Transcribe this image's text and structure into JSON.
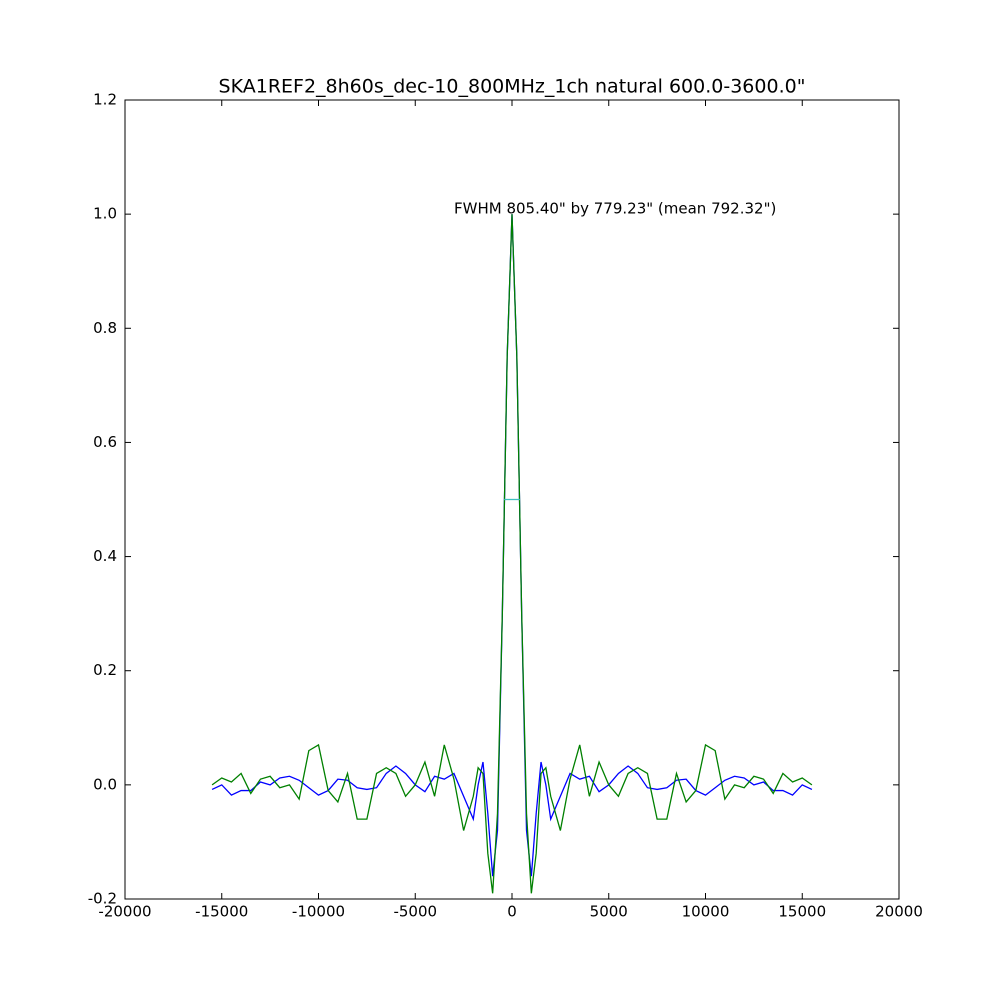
{
  "chart_data": {
    "type": "line",
    "title": "SKA1REF2_8h60s_dec-10_800MHz_1ch natural  600.0-3600.0\"",
    "annotation": "FWHM 805.40\" by 779.23\" (mean 792.32\")",
    "x": [
      -15500,
      -15000,
      -14500,
      -14000,
      -13500,
      -13000,
      -12500,
      -12000,
      -11500,
      -11000,
      -10500,
      -10000,
      -9500,
      -9000,
      -8500,
      -8000,
      -7500,
      -7000,
      -6500,
      -6000,
      -5500,
      -5000,
      -4500,
      -4000,
      -3500,
      -3000,
      -2500,
      -2000,
      -1750,
      -1500,
      -1250,
      -1000,
      -750,
      -500,
      -250,
      0,
      250,
      500,
      750,
      1000,
      1250,
      1500,
      1750,
      2000,
      2500,
      3000,
      3500,
      4000,
      4500,
      5000,
      5500,
      6000,
      6500,
      7000,
      7500,
      8000,
      8500,
      9000,
      9500,
      10000,
      10500,
      11000,
      11500,
      12000,
      12500,
      13000,
      13500,
      14000,
      14500,
      15000,
      15500
    ],
    "series": [
      {
        "color": "#0000ff",
        "values": [
          -0.008,
          0.0,
          -0.018,
          -0.01,
          -0.01,
          0.005,
          0.0,
          0.012,
          0.015,
          0.008,
          -0.005,
          -0.018,
          -0.01,
          0.01,
          0.008,
          -0.005,
          -0.008,
          -0.005,
          0.02,
          0.033,
          0.02,
          0.0,
          -0.012,
          0.015,
          0.01,
          0.02,
          -0.02,
          -0.06,
          0.0,
          0.04,
          -0.05,
          -0.16,
          -0.08,
          0.3,
          0.75,
          1.0,
          0.75,
          0.3,
          -0.08,
          -0.16,
          -0.05,
          0.04,
          0.0,
          -0.06,
          -0.02,
          0.02,
          0.01,
          0.015,
          -0.012,
          0.0,
          0.02,
          0.033,
          0.02,
          -0.005,
          -0.008,
          -0.005,
          0.008,
          0.01,
          -0.01,
          -0.018,
          -0.005,
          0.008,
          0.015,
          0.012,
          0.0,
          0.005,
          -0.01,
          -0.01,
          -0.018,
          0.0,
          -0.008
        ]
      },
      {
        "color": "#008000",
        "values": [
          0.0,
          0.012,
          0.005,
          0.02,
          -0.015,
          0.01,
          0.015,
          -0.005,
          0.0,
          -0.025,
          0.06,
          0.07,
          -0.01,
          -0.03,
          0.02,
          -0.06,
          -0.06,
          0.02,
          0.03,
          0.02,
          -0.02,
          0.0,
          0.04,
          -0.02,
          0.07,
          0.01,
          -0.08,
          -0.02,
          0.03,
          0.02,
          -0.12,
          -0.19,
          -0.05,
          0.3,
          0.75,
          1.0,
          0.75,
          0.3,
          -0.05,
          -0.19,
          -0.12,
          0.02,
          0.03,
          -0.02,
          -0.08,
          0.01,
          0.07,
          -0.02,
          0.04,
          0.0,
          -0.02,
          0.02,
          0.03,
          0.02,
          -0.06,
          -0.06,
          0.02,
          -0.03,
          -0.01,
          0.07,
          0.06,
          -0.025,
          0.0,
          -0.005,
          0.015,
          0.01,
          -0.015,
          0.02,
          0.005,
          0.012,
          0.0
        ]
      }
    ],
    "fwhm_marker": {
      "x": [
        -402.7,
        402.7
      ],
      "values": [
        0.5,
        0.5
      ],
      "color": "#40c0c0"
    },
    "xlim": [
      -20000,
      20000
    ],
    "xticks": [
      -20000,
      -15000,
      -10000,
      -5000,
      0,
      5000,
      10000,
      15000,
      20000
    ],
    "ylim": [
      -0.2,
      1.2
    ],
    "yticks": [
      -0.2,
      {
        "value": 0,
        "label": "0.0"
      },
      0.2,
      0.4,
      0.6,
      0.8,
      {
        "value": 1,
        "label": "1.0"
      },
      1.2
    ]
  }
}
